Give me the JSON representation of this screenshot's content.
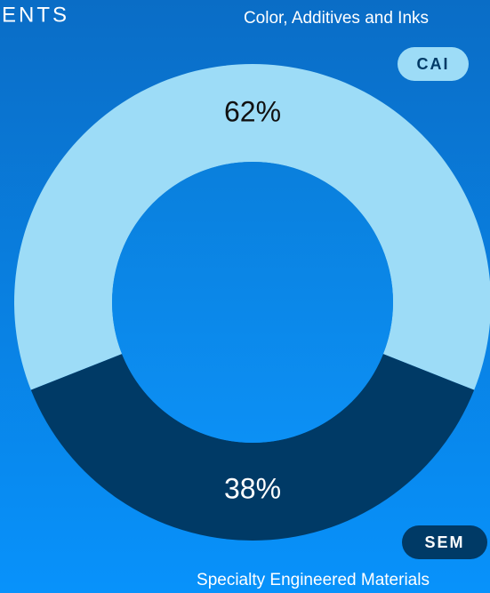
{
  "chart_data": {
    "type": "donut",
    "title": "ENTS",
    "categories": [
      "CAI",
      "SEM"
    ],
    "descriptions": [
      "Color, Additives and Inks",
      "Specialty Engineered Materials"
    ],
    "values": [
      62,
      38
    ],
    "value_labels": [
      "62%",
      "38%"
    ],
    "colors": [
      "#9ddcf7",
      "#003a66"
    ]
  }
}
